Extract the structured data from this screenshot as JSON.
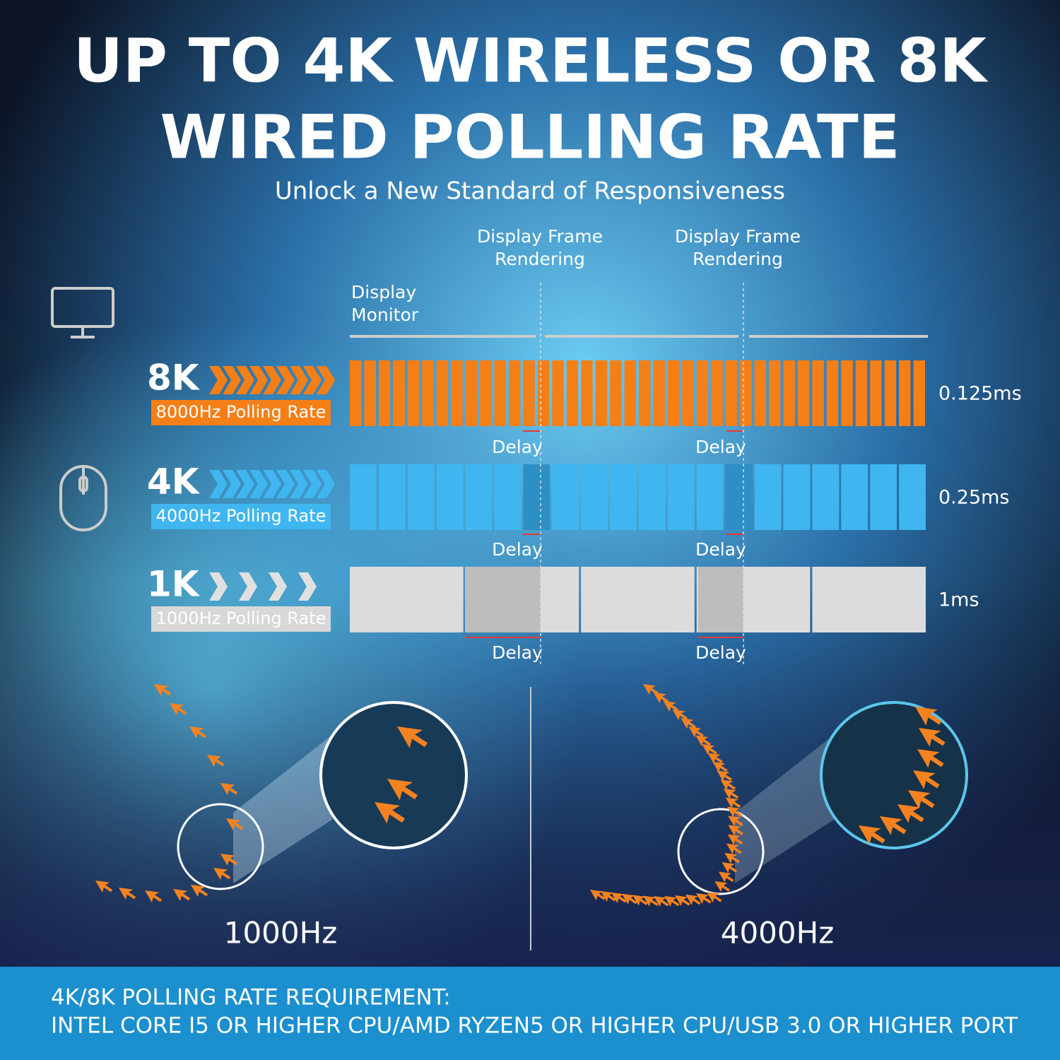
{
  "header": {
    "title_lines": [
      "UP TO 4K WIRELESS OR 8K",
      "WIRED POLLING RATE"
    ],
    "subtitle": "Unlock a New Standard of Responsiveness"
  },
  "diagram": {
    "frame_labels": [
      [
        "Display Frame",
        "Rendering"
      ],
      [
        "Display Frame",
        "Rendering"
      ]
    ],
    "monitor_label": [
      "Display",
      "Monitor"
    ],
    "rows": [
      {
        "badge": "8K",
        "label": "8000Hz Polling Rate",
        "interval": "0.125ms"
      },
      {
        "badge": "4K",
        "label": "4000Hz Polling Rate",
        "interval": "0.25ms"
      },
      {
        "badge": "1K",
        "label": "1000Hz Polling Rate",
        "interval": "1ms"
      }
    ],
    "delay_labels": [
      "Delay",
      "Delay",
      "Delay",
      "Delay",
      "Delay",
      "Delay"
    ]
  },
  "comparison": {
    "left": "1000Hz",
    "right": "4000Hz"
  },
  "footer": {
    "heading": "4K/8K POLLING RATE REQUIREMENT:",
    "text": "INTEL CORE I5 OR HIGHER CPU/AMD RYZEN5 OR HIGHER CPU/USB 3.0 OR HIGHER PORT"
  }
}
